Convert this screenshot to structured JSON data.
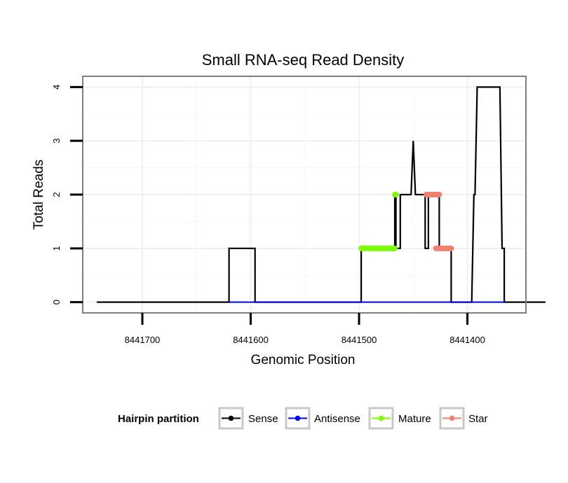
{
  "chart_data": {
    "type": "line",
    "title": "Small RNA-seq Read Density",
    "xlabel": "Genomic Position",
    "ylabel": "Total Reads",
    "x_reversed": true,
    "xlim": [
      8441346,
      8441755
    ],
    "ylim": [
      -0.2,
      4.2
    ],
    "x_ticks": [
      8441700,
      8441600,
      8441500,
      8441400
    ],
    "x_tick_labels": [
      "8441700",
      "8441600",
      "8441500",
      "8441400"
    ],
    "y_ticks": [
      0,
      1,
      2,
      3,
      4
    ],
    "y_tick_labels": [
      "0",
      "1",
      "2",
      "3",
      "4"
    ],
    "grid": true,
    "legend": {
      "title": "Hairpin partition",
      "placement": "bottom",
      "entries": [
        {
          "label": "Sense",
          "color": "#000000"
        },
        {
          "label": "Antisense",
          "color": "#0000ff"
        },
        {
          "label": "Mature",
          "color": "#7cfc00"
        },
        {
          "label": "Star",
          "color": "#f08070"
        }
      ]
    },
    "series": [
      {
        "name": "Sense",
        "color": "#000000",
        "points": [
          [
            8441742,
            0
          ],
          [
            8441620,
            0
          ],
          [
            8441620,
            1
          ],
          [
            8441596,
            1
          ],
          [
            8441596,
            0
          ],
          [
            8441498,
            0
          ],
          [
            8441498,
            1
          ],
          [
            8441467,
            1
          ],
          [
            8441467,
            2
          ],
          [
            8441466,
            2
          ],
          [
            8441466,
            1
          ],
          [
            8441462,
            1
          ],
          [
            8441462,
            2
          ],
          [
            8441452,
            2
          ],
          [
            8441450,
            3
          ],
          [
            8441448,
            2
          ],
          [
            8441439,
            2
          ],
          [
            8441439,
            1
          ],
          [
            8441436,
            1
          ],
          [
            8441436,
            2
          ],
          [
            8441426,
            2
          ],
          [
            8441426,
            1
          ],
          [
            8441415,
            1
          ],
          [
            8441415,
            0
          ],
          [
            8441396,
            0
          ],
          [
            8441394,
            2
          ],
          [
            8441393,
            2
          ],
          [
            8441391,
            4
          ],
          [
            8441370,
            4
          ],
          [
            8441368,
            1
          ],
          [
            8441366,
            1
          ],
          [
            8441366,
            0
          ],
          [
            8441328,
            0
          ]
        ]
      },
      {
        "name": "Antisense",
        "color": "#0000ff",
        "points": [
          [
            8441620,
            0
          ],
          [
            8441596,
            0
          ],
          [
            8441498,
            0
          ],
          [
            8441366,
            0
          ]
        ]
      },
      {
        "name": "Mature",
        "color": "#7cfc00",
        "segments": [
          {
            "x0": 8441498,
            "x1": 8441467,
            "y": 1
          },
          {
            "x0": 8441467,
            "x1": 8441466,
            "y": 2
          }
        ]
      },
      {
        "name": "Star",
        "color": "#f08070",
        "segments": [
          {
            "x0": 8441438,
            "x1": 8441426,
            "y": 2
          },
          {
            "x0": 8441429,
            "x1": 8441415,
            "y": 1
          }
        ]
      }
    ]
  }
}
